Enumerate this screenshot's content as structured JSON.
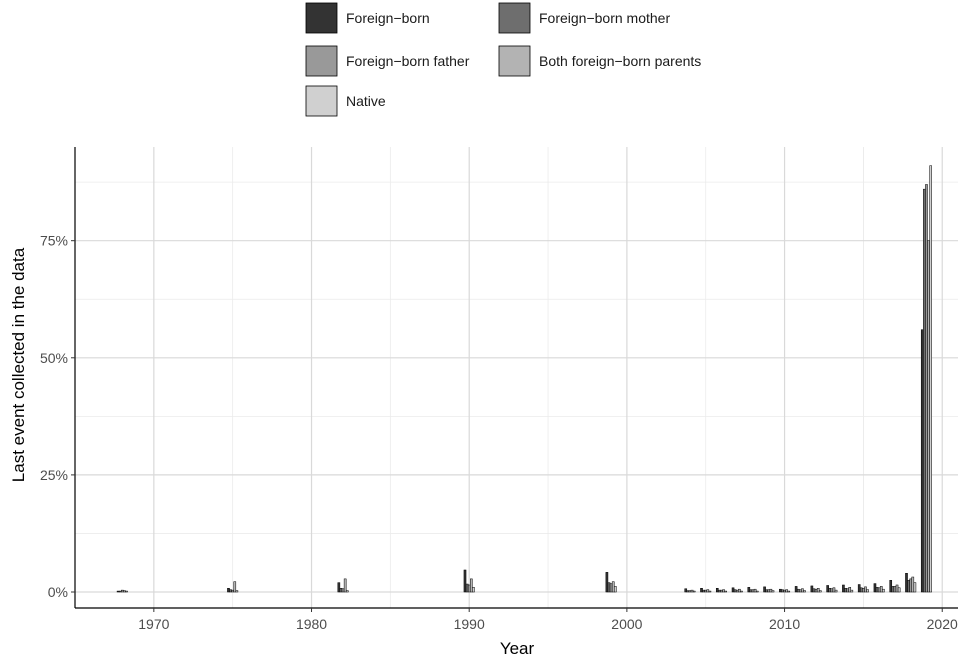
{
  "chart_data": {
    "type": "bar",
    "title": "",
    "xlabel": "Year",
    "ylabel": "Last event collected in the data",
    "xlim": [
      1965,
      2021
    ],
    "ylim": [
      0,
      0.95
    ],
    "x_ticks": [
      1970,
      1980,
      1990,
      2000,
      2010,
      2020
    ],
    "x_tick_labels": [
      "1970",
      "1980",
      "1990",
      "2000",
      "2010",
      "2020"
    ],
    "y_ticks": [
      0,
      0.25,
      0.5,
      0.75
    ],
    "y_tick_labels": [
      "0%",
      "25%",
      "50%",
      "75%"
    ],
    "grid": true,
    "legend_position": "top",
    "legend": [
      "Foreign−born",
      "Foreign−born mother",
      "Foreign−born father",
      "Both foreign−born parents",
      "Native"
    ],
    "series_colors": [
      "#333333",
      "#6e6e6e",
      "#999999",
      "#b3b3b3",
      "#d0d0d0"
    ],
    "x": [
      1968,
      1975,
      1982,
      1990,
      1999,
      2004,
      2005,
      2006,
      2007,
      2008,
      2009,
      2010,
      2011,
      2012,
      2013,
      2014,
      2015,
      2016,
      2017,
      2018,
      2019
    ],
    "series": [
      {
        "name": "Foreign−born",
        "values": [
          0.002,
          0.008,
          0.02,
          0.047,
          0.042,
          0.007,
          0.008,
          0.008,
          0.009,
          0.01,
          0.011,
          0.006,
          0.012,
          0.013,
          0.014,
          0.015,
          0.016,
          0.018,
          0.025,
          0.04,
          0.56
        ]
      },
      {
        "name": "Foreign−born mother",
        "values": [
          0.002,
          0.005,
          0.008,
          0.017,
          0.02,
          0.003,
          0.004,
          0.004,
          0.005,
          0.005,
          0.005,
          0.005,
          0.006,
          0.007,
          0.008,
          0.008,
          0.009,
          0.01,
          0.012,
          0.025,
          0.86
        ]
      },
      {
        "name": "Foreign−born father",
        "values": [
          0.004,
          0.004,
          0.007,
          0.015,
          0.018,
          0.003,
          0.004,
          0.004,
          0.004,
          0.005,
          0.005,
          0.004,
          0.005,
          0.006,
          0.007,
          0.007,
          0.008,
          0.009,
          0.012,
          0.028,
          0.87
        ]
      },
      {
        "name": "Both foreign−born parents",
        "values": [
          0.003,
          0.022,
          0.028,
          0.028,
          0.022,
          0.004,
          0.005,
          0.005,
          0.006,
          0.006,
          0.006,
          0.005,
          0.007,
          0.008,
          0.009,
          0.01,
          0.011,
          0.012,
          0.015,
          0.032,
          0.75
        ]
      },
      {
        "name": "Native",
        "values": [
          0.002,
          0.003,
          0.003,
          0.01,
          0.012,
          0.002,
          0.002,
          0.002,
          0.002,
          0.002,
          0.003,
          0.002,
          0.003,
          0.003,
          0.004,
          0.004,
          0.005,
          0.006,
          0.009,
          0.02,
          0.91
        ]
      }
    ]
  }
}
